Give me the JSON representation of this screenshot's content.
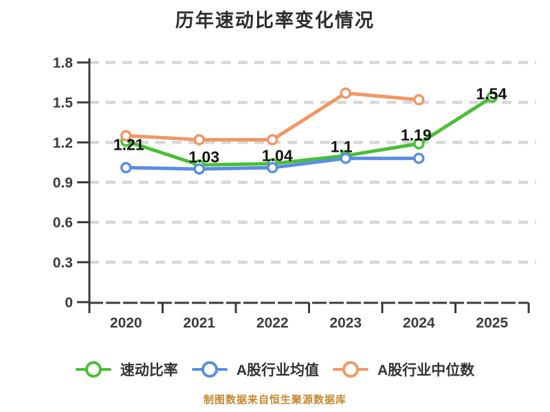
{
  "chart_data": {
    "type": "line",
    "title": "历年速动比率变化情况",
    "footer": "制图数据来自恒生聚源数据库",
    "x_categories": [
      "2020",
      "2021",
      "2022",
      "2023",
      "2024",
      "2025"
    ],
    "y_ticks": [
      0,
      0.3,
      0.6,
      0.9,
      1.2,
      1.5,
      1.8
    ],
    "ylim": [
      0,
      1.8
    ],
    "grid": "horizontal-dashed",
    "legend_position": "bottom",
    "series": [
      {
        "name": "速动比率",
        "color": "#49bf35",
        "values": [
          1.21,
          1.03,
          1.04,
          1.1,
          1.19,
          1.54
        ],
        "labels": [
          "1.21",
          "1.03",
          "1.04",
          "1.1",
          "1.19",
          "1.54"
        ]
      },
      {
        "name": "A股行业均值",
        "color": "#5a8de4",
        "values": [
          1.01,
          1.0,
          1.01,
          1.08,
          1.08,
          null
        ],
        "labels": []
      },
      {
        "name": "A股行业中位数",
        "color": "#f39664",
        "values": [
          1.25,
          1.22,
          1.22,
          1.57,
          1.52,
          null
        ],
        "labels": []
      }
    ],
    "style_colors": {
      "grid": "#d7d7d7",
      "axis": "#3a3a3a",
      "tick_label": "#3c3c3c",
      "data_label": "#101010",
      "marker_fill": "#ffffff",
      "background": "#ffffff"
    }
  }
}
